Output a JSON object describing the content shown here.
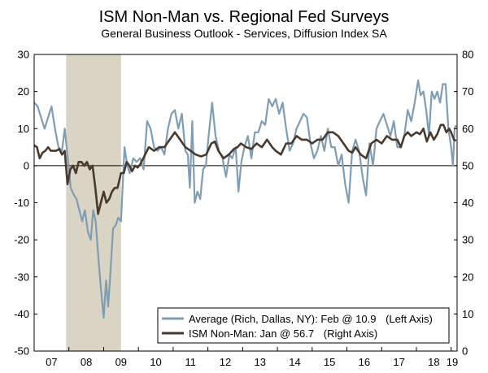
{
  "chart_data": {
    "type": "line",
    "title": "ISM Non-Man vs. Regional Fed Surveys",
    "subtitle": "General Business Outlook - Services, Diffusion Index SA",
    "x_ticks": [
      "07",
      "08",
      "09",
      "10",
      "11",
      "12",
      "13",
      "14",
      "15",
      "16",
      "17",
      "18",
      "19"
    ],
    "xlim": [
      2007.0,
      2019.17
    ],
    "y_left": {
      "ticks": [
        "30",
        "20",
        "10",
        "0",
        "-10",
        "-20",
        "-30",
        "-40",
        "-50"
      ],
      "lim": [
        -50,
        30
      ]
    },
    "y_right": {
      "ticks": [
        "80",
        "70",
        "60",
        "50",
        "40",
        "30",
        "20",
        "10",
        "0"
      ],
      "lim": [
        0,
        80
      ]
    },
    "recession": {
      "start": 2007.92,
      "end": 2009.5,
      "color": "#d9d4c3"
    },
    "zero_line": 0,
    "grid": false,
    "legend": {
      "placement": "bottom-right"
    },
    "series": [
      {
        "name": "Average (Rich, Dallas, NY): Feb @ 10.9",
        "axis_note": "(Left Axis)",
        "axis": "left",
        "color": "#7f9db4",
        "points": [
          [
            2007.0,
            17
          ],
          [
            2007.1,
            16
          ],
          [
            2007.2,
            13
          ],
          [
            2007.3,
            10
          ],
          [
            2007.4,
            13
          ],
          [
            2007.5,
            16
          ],
          [
            2007.6,
            10
          ],
          [
            2007.7,
            5
          ],
          [
            2007.8,
            4
          ],
          [
            2007.88,
            10
          ],
          [
            2008.0,
            -1
          ],
          [
            2008.05,
            -6
          ],
          [
            2008.15,
            -8
          ],
          [
            2008.22,
            -9
          ],
          [
            2008.3,
            -12
          ],
          [
            2008.38,
            -15
          ],
          [
            2008.46,
            -12
          ],
          [
            2008.55,
            -18
          ],
          [
            2008.63,
            -20
          ],
          [
            2008.7,
            -12
          ],
          [
            2008.77,
            -15
          ],
          [
            2008.85,
            -25
          ],
          [
            2008.92,
            -33
          ],
          [
            2009.0,
            -41
          ],
          [
            2009.07,
            -31
          ],
          [
            2009.13,
            -38
          ],
          [
            2009.2,
            -28
          ],
          [
            2009.27,
            -17
          ],
          [
            2009.35,
            -16
          ],
          [
            2009.42,
            -14
          ],
          [
            2009.5,
            -15
          ],
          [
            2009.6,
            5
          ],
          [
            2009.68,
            0
          ],
          [
            2009.75,
            -2
          ],
          [
            2009.85,
            2
          ],
          [
            2009.95,
            1
          ],
          [
            2010.05,
            2
          ],
          [
            2010.15,
            -1
          ],
          [
            2010.25,
            12
          ],
          [
            2010.35,
            10
          ],
          [
            2010.45,
            5
          ],
          [
            2010.55,
            4
          ],
          [
            2010.65,
            5
          ],
          [
            2010.75,
            3
          ],
          [
            2010.85,
            10
          ],
          [
            2010.95,
            14
          ],
          [
            2011.05,
            15
          ],
          [
            2011.15,
            10
          ],
          [
            2011.25,
            14
          ],
          [
            2011.35,
            4
          ],
          [
            2011.42,
            3
          ],
          [
            2011.48,
            -6
          ],
          [
            2011.55,
            12
          ],
          [
            2011.62,
            -10
          ],
          [
            2011.7,
            -7
          ],
          [
            2011.78,
            -9
          ],
          [
            2011.86,
            -1
          ],
          [
            2011.94,
            0
          ],
          [
            2012.02,
            8
          ],
          [
            2012.12,
            17
          ],
          [
            2012.22,
            8
          ],
          [
            2012.32,
            4
          ],
          [
            2012.42,
            2
          ],
          [
            2012.52,
            -3
          ],
          [
            2012.62,
            3
          ],
          [
            2012.7,
            2
          ],
          [
            2012.8,
            5
          ],
          [
            2012.88,
            -7
          ],
          [
            2012.96,
            1
          ],
          [
            2013.05,
            5
          ],
          [
            2013.15,
            8
          ],
          [
            2013.25,
            2
          ],
          [
            2013.35,
            9
          ],
          [
            2013.45,
            9
          ],
          [
            2013.55,
            12
          ],
          [
            2013.65,
            11
          ],
          [
            2013.75,
            18
          ],
          [
            2013.85,
            16
          ],
          [
            2013.95,
            18
          ],
          [
            2014.05,
            14
          ],
          [
            2014.15,
            17
          ],
          [
            2014.25,
            10
          ],
          [
            2014.35,
            4
          ],
          [
            2014.45,
            6
          ],
          [
            2014.55,
            10
          ],
          [
            2014.65,
            12
          ],
          [
            2014.75,
            14
          ],
          [
            2014.85,
            13
          ],
          [
            2014.95,
            6
          ],
          [
            2015.05,
            2
          ],
          [
            2015.15,
            4
          ],
          [
            2015.25,
            8
          ],
          [
            2015.35,
            4
          ],
          [
            2015.45,
            10
          ],
          [
            2015.55,
            5
          ],
          [
            2015.65,
            5
          ],
          [
            2015.75,
            0
          ],
          [
            2015.85,
            3
          ],
          [
            2015.95,
            -5
          ],
          [
            2016.05,
            -10
          ],
          [
            2016.15,
            4
          ],
          [
            2016.25,
            7
          ],
          [
            2016.35,
            4
          ],
          [
            2016.45,
            -3
          ],
          [
            2016.55,
            -8
          ],
          [
            2016.65,
            6
          ],
          [
            2016.75,
            0
          ],
          [
            2016.85,
            10
          ],
          [
            2016.95,
            12
          ],
          [
            2017.05,
            14
          ],
          [
            2017.15,
            11
          ],
          [
            2017.25,
            8
          ],
          [
            2017.35,
            12
          ],
          [
            2017.45,
            5
          ],
          [
            2017.55,
            5
          ],
          [
            2017.65,
            8
          ],
          [
            2017.75,
            15
          ],
          [
            2017.85,
            12
          ],
          [
            2017.95,
            17
          ],
          [
            2018.05,
            23
          ],
          [
            2018.12,
            19
          ],
          [
            2018.2,
            20
          ],
          [
            2018.28,
            15
          ],
          [
            2018.36,
            8
          ],
          [
            2018.44,
            20
          ],
          [
            2018.52,
            18
          ],
          [
            2018.6,
            20
          ],
          [
            2018.68,
            17
          ],
          [
            2018.76,
            22
          ],
          [
            2018.84,
            22
          ],
          [
            2018.92,
            10
          ],
          [
            2019.0,
            5
          ],
          [
            2019.05,
            0
          ],
          [
            2019.1,
            10
          ],
          [
            2019.14,
            10.9
          ]
        ]
      },
      {
        "name": "ISM Non-Man: Jan @ 56.7",
        "axis_note": "(Right Axis)",
        "axis": "right",
        "color": "#4a3a2d",
        "points": [
          [
            2007.0,
            55.5
          ],
          [
            2007.08,
            55
          ],
          [
            2007.16,
            52
          ],
          [
            2007.24,
            53.5
          ],
          [
            2007.32,
            54
          ],
          [
            2007.4,
            55
          ],
          [
            2007.48,
            54
          ],
          [
            2007.56,
            54
          ],
          [
            2007.64,
            54
          ],
          [
            2007.72,
            54.5
          ],
          [
            2007.8,
            53
          ],
          [
            2007.88,
            54
          ],
          [
            2007.96,
            45
          ],
          [
            2008.04,
            49
          ],
          [
            2008.12,
            50
          ],
          [
            2008.2,
            48
          ],
          [
            2008.28,
            51
          ],
          [
            2008.36,
            51
          ],
          [
            2008.44,
            50
          ],
          [
            2008.52,
            51
          ],
          [
            2008.6,
            49
          ],
          [
            2008.68,
            50
          ],
          [
            2008.76,
            44
          ],
          [
            2008.84,
            37
          ],
          [
            2008.92,
            40
          ],
          [
            2009.0,
            43
          ],
          [
            2009.08,
            40
          ],
          [
            2009.16,
            41
          ],
          [
            2009.24,
            43
          ],
          [
            2009.32,
            44
          ],
          [
            2009.4,
            44
          ],
          [
            2009.5,
            48
          ],
          [
            2009.58,
            48
          ],
          [
            2009.66,
            51
          ],
          [
            2009.74,
            50
          ],
          [
            2009.82,
            48.5
          ],
          [
            2009.9,
            50
          ],
          [
            2009.98,
            49.5
          ],
          [
            2010.06,
            50.5
          ],
          [
            2010.14,
            52
          ],
          [
            2010.3,
            55
          ],
          [
            2010.45,
            54
          ],
          [
            2010.6,
            55
          ],
          [
            2010.75,
            55
          ],
          [
            2010.9,
            57
          ],
          [
            2011.05,
            59
          ],
          [
            2011.2,
            57
          ],
          [
            2011.35,
            55
          ],
          [
            2011.5,
            54
          ],
          [
            2011.65,
            53
          ],
          [
            2011.8,
            52.5
          ],
          [
            2011.95,
            53
          ],
          [
            2012.1,
            56
          ],
          [
            2012.2,
            56.5
          ],
          [
            2012.3,
            54
          ],
          [
            2012.45,
            52
          ],
          [
            2012.6,
            53
          ],
          [
            2012.75,
            54.5
          ],
          [
            2012.85,
            55
          ],
          [
            2012.95,
            56
          ],
          [
            2013.1,
            55
          ],
          [
            2013.25,
            54.5
          ],
          [
            2013.4,
            56
          ],
          [
            2013.55,
            55
          ],
          [
            2013.7,
            57
          ],
          [
            2013.85,
            55
          ],
          [
            2013.95,
            54
          ],
          [
            2014.1,
            53
          ],
          [
            2014.25,
            56
          ],
          [
            2014.4,
            56
          ],
          [
            2014.55,
            58
          ],
          [
            2014.7,
            57
          ],
          [
            2014.85,
            57
          ],
          [
            2015.0,
            56
          ],
          [
            2015.15,
            57
          ],
          [
            2015.3,
            57
          ],
          [
            2015.45,
            59
          ],
          [
            2015.6,
            59
          ],
          [
            2015.75,
            58
          ],
          [
            2015.9,
            56
          ],
          [
            2016.05,
            54
          ],
          [
            2016.15,
            53.5
          ],
          [
            2016.25,
            55
          ],
          [
            2016.4,
            53
          ],
          [
            2016.55,
            52
          ],
          [
            2016.7,
            56
          ],
          [
            2016.85,
            57
          ],
          [
            2017.0,
            56
          ],
          [
            2017.15,
            58
          ],
          [
            2017.3,
            57
          ],
          [
            2017.45,
            57
          ],
          [
            2017.55,
            55
          ],
          [
            2017.65,
            58
          ],
          [
            2017.75,
            59
          ],
          [
            2017.85,
            58
          ],
          [
            2018.0,
            59
          ],
          [
            2018.1,
            58.5
          ],
          [
            2018.2,
            60
          ],
          [
            2018.3,
            56.5
          ],
          [
            2018.4,
            59
          ],
          [
            2018.5,
            57
          ],
          [
            2018.6,
            58.5
          ],
          [
            2018.7,
            61
          ],
          [
            2018.78,
            61
          ],
          [
            2018.86,
            59
          ],
          [
            2018.94,
            60
          ],
          [
            2019.0,
            59
          ],
          [
            2019.08,
            57
          ],
          [
            2019.14,
            56.7
          ]
        ]
      }
    ]
  }
}
